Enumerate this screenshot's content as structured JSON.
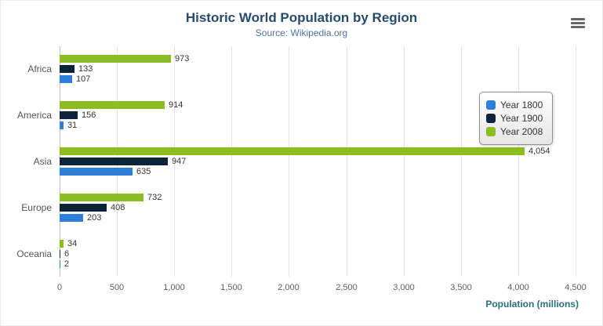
{
  "chart_data": {
    "type": "bar",
    "orientation": "horizontal",
    "title": "Historic World Population by Region",
    "subtitle": "Source: Wikipedia.org",
    "categories": [
      "Africa",
      "America",
      "Asia",
      "Europe",
      "Oceania"
    ],
    "series": [
      {
        "name": "Year 1800",
        "color": "#2f7ed8",
        "values": [
          107,
          31,
          635,
          203,
          2
        ]
      },
      {
        "name": "Year 1900",
        "color": "#0d233a",
        "values": [
          133,
          156,
          947,
          408,
          6
        ]
      },
      {
        "name": "Year 2008",
        "color": "#8bbc21",
        "values": [
          973,
          914,
          4054,
          732,
          34
        ]
      }
    ],
    "bar_display_order_top_to_bottom": [
      "Year 2008",
      "Year 1900",
      "Year 1800"
    ],
    "xlabel": "Population (millions)",
    "xlim": [
      0,
      4500
    ],
    "xticks": [
      "0",
      "500",
      "1,000",
      "1,500",
      "2,000",
      "2,500",
      "3,000",
      "3,500",
      "4,000",
      "4,500"
    ],
    "grid": true,
    "legend_position": "right"
  },
  "export_menu": {
    "icon": "hamburger-menu"
  }
}
